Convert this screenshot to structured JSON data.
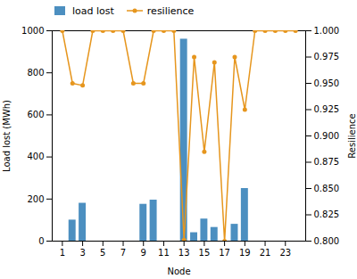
{
  "chart_data": {
    "type": "bar",
    "xlabel": "Node",
    "ylabel": "Load lost (MWh)",
    "y2label": "Resilience",
    "x": [
      1,
      2,
      3,
      4,
      5,
      6,
      7,
      8,
      9,
      10,
      11,
      12,
      13,
      14,
      15,
      16,
      17,
      18,
      19,
      20,
      21,
      22,
      23,
      24
    ],
    "series": [
      {
        "name": "load lost",
        "type": "bar",
        "color": "#4c8fc0",
        "values": [
          0,
          100,
          180,
          0,
          0,
          0,
          0,
          0,
          175,
          195,
          0,
          0,
          960,
          40,
          105,
          65,
          0,
          80,
          250,
          0,
          0,
          0,
          0,
          0
        ]
      },
      {
        "name": "resilience",
        "type": "line",
        "axis": "y2",
        "color": "#e6961e",
        "marker": "circle",
        "line_style": "solid",
        "values": [
          1.0,
          0.95,
          0.948,
          1.0,
          1.0,
          1.0,
          1.0,
          0.95,
          0.95,
          1.0,
          1.0,
          1.0,
          0.801,
          0.975,
          0.885,
          0.97,
          0.8,
          0.975,
          0.925,
          1.0,
          1.0,
          1.0,
          1.0,
          1.0
        ]
      }
    ],
    "xlim": [
      0,
      25
    ],
    "xticks": [
      1,
      3,
      5,
      7,
      9,
      11,
      13,
      15,
      17,
      19,
      21,
      23
    ],
    "ylim": [
      0,
      1000
    ],
    "yticks": [
      0,
      200,
      400,
      600,
      800,
      1000
    ],
    "y2lim": [
      0.8,
      1.0
    ],
    "y2ticks": [
      {
        "value": 0.8,
        "label": "0.800"
      },
      0.825,
      {
        "value": 0.85,
        "label": "0.850"
      },
      0.875,
      {
        "value": 0.9,
        "label": "0.900"
      },
      0.925,
      {
        "value": 0.95,
        "label": "0.950"
      },
      0.975,
      {
        "value": 1.0,
        "label": "1.000"
      }
    ],
    "legend": "upper left",
    "grid": false
  }
}
